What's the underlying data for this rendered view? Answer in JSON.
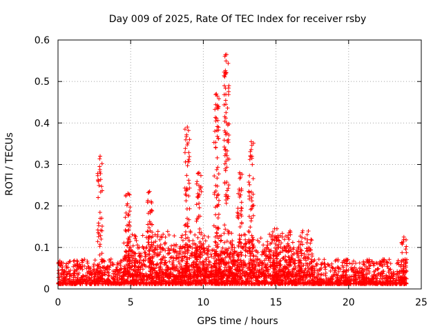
{
  "chart_data": {
    "type": "scatter",
    "title": "Day 009 of 2025, Rate Of TEC Index for receiver rsby",
    "xlabel": "GPS time / hours",
    "ylabel": "ROTI / TECUs",
    "xlim": [
      0,
      25
    ],
    "ylim": [
      0,
      0.6
    ],
    "xticks": [
      "0",
      "5",
      "10",
      "15",
      "20",
      "25"
    ],
    "yticks": [
      "0",
      "0.1",
      "0.2",
      "0.3",
      "0.4",
      "0.5",
      "0.6"
    ],
    "grid": true,
    "marker": "+",
    "color": "#ff0000",
    "spikes": [
      {
        "x": 2.9,
        "y": 0.32
      },
      {
        "x": 4.8,
        "y": 0.23
      },
      {
        "x": 6.3,
        "y": 0.235
      },
      {
        "x": 8.9,
        "y": 0.39
      },
      {
        "x": 9.7,
        "y": 0.28
      },
      {
        "x": 10.9,
        "y": 0.47
      },
      {
        "x": 11.6,
        "y": 0.565
      },
      {
        "x": 12.5,
        "y": 0.28
      },
      {
        "x": 13.3,
        "y": 0.355
      },
      {
        "x": 14.9,
        "y": 0.145
      },
      {
        "x": 23.8,
        "y": 0.125
      }
    ]
  }
}
